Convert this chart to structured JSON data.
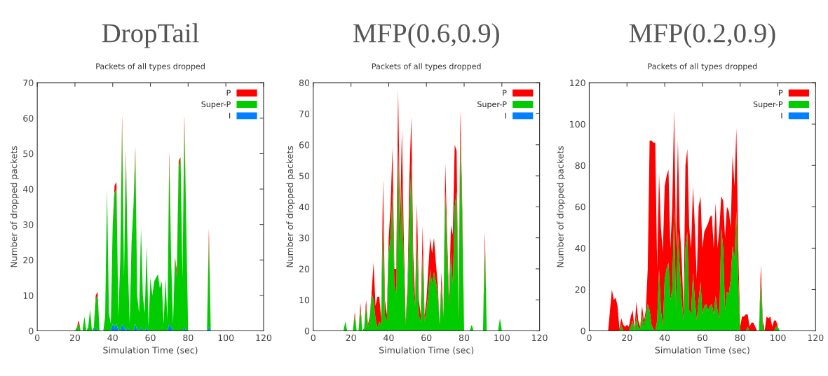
{
  "chart_data": [
    {
      "type": "area",
      "stacked": true,
      "title": "DropTail",
      "subtitle": "Packets of all types dropped",
      "xlabel": "Simulation Time (sec)",
      "ylabel": "Number of dropped packets",
      "xlim": [
        0,
        120
      ],
      "xticks": [
        0,
        20,
        40,
        60,
        80,
        100,
        120
      ],
      "ylim": [
        0,
        70
      ],
      "yticks": [
        0,
        10,
        20,
        30,
        40,
        50,
        60,
        70
      ],
      "legend": "top right",
      "x": [
        0,
        19,
        20,
        21,
        22,
        23,
        24,
        25,
        26,
        27,
        28,
        29,
        30,
        31,
        32,
        33,
        35,
        36,
        37,
        38,
        39,
        40,
        41,
        42,
        43,
        44,
        45,
        46,
        47,
        48,
        49,
        50,
        51,
        52,
        53,
        54,
        55,
        56,
        57,
        58,
        59,
        60,
        61,
        62,
        63,
        64,
        65,
        66,
        67,
        68,
        69,
        70,
        71,
        72,
        73,
        74,
        75,
        76,
        77,
        78,
        79,
        80,
        90,
        91,
        92,
        120
      ],
      "series": [
        {
          "name": "I",
          "color": "#0080ff",
          "values": [
            0,
            0,
            0,
            0,
            0,
            0,
            0,
            0,
            0,
            0,
            0,
            0,
            0,
            1,
            0,
            0,
            0,
            0,
            0,
            0,
            0,
            2,
            1,
            2,
            0,
            0,
            2,
            1,
            0,
            1,
            0,
            0,
            0,
            2,
            0,
            0,
            1,
            0,
            0,
            1,
            0,
            0,
            0,
            0,
            0,
            0,
            0,
            0,
            0,
            0,
            0,
            2,
            1,
            0,
            0,
            0,
            0,
            0,
            0,
            1,
            0,
            0,
            0,
            1,
            0,
            0
          ]
        },
        {
          "name": "Super-P",
          "color": "#00cc00",
          "values": [
            0,
            0,
            0,
            1,
            2,
            0,
            0,
            4,
            0,
            1,
            6,
            0,
            1,
            8,
            10,
            0,
            0,
            4,
            40,
            5,
            2,
            28,
            38,
            38,
            4,
            20,
            56,
            14,
            49,
            19,
            2,
            25,
            35,
            48,
            10,
            5,
            28,
            10,
            5,
            23,
            1,
            15,
            10,
            14,
            15,
            16,
            12,
            14,
            2,
            15,
            3,
            46,
            19,
            2,
            21,
            15,
            46,
            49,
            15,
            57,
            30,
            0,
            0,
            25,
            0,
            0
          ]
        },
        {
          "name": "P",
          "color": "#ff0000",
          "values": [
            0,
            0,
            0,
            0,
            1,
            0,
            0,
            0,
            0,
            0,
            0,
            0,
            0,
            1,
            1,
            0,
            0,
            0,
            0,
            0,
            0,
            0,
            2,
            2,
            0,
            0,
            3,
            0,
            2,
            0,
            0,
            0,
            0,
            2,
            0,
            0,
            0,
            0,
            0,
            0,
            0,
            0,
            0,
            0,
            0,
            0,
            0,
            0,
            0,
            0,
            0,
            3,
            0,
            0,
            0,
            2,
            2,
            0,
            0,
            3,
            0,
            0,
            0,
            3,
            0,
            0
          ]
        }
      ]
    },
    {
      "type": "area",
      "stacked": true,
      "title": "MFP(0.6,0.9)",
      "subtitle": "Packets of all types dropped",
      "xlabel": "Simulation Time (sec)",
      "ylabel": "Number of dropped packets",
      "xlim": [
        0,
        120
      ],
      "xticks": [
        0,
        20,
        40,
        60,
        80,
        100,
        120
      ],
      "ylim": [
        0,
        80
      ],
      "yticks": [
        0,
        10,
        20,
        30,
        40,
        50,
        60,
        70,
        80
      ],
      "legend": "top right",
      "x": [
        0,
        16,
        17,
        18,
        21,
        22,
        23,
        24,
        25,
        26,
        27,
        28,
        29,
        30,
        31,
        32,
        33,
        34,
        35,
        36,
        37,
        38,
        39,
        40,
        41,
        42,
        43,
        44,
        45,
        46,
        47,
        48,
        49,
        50,
        51,
        52,
        53,
        54,
        55,
        56,
        57,
        58,
        59,
        60,
        61,
        62,
        63,
        64,
        65,
        66,
        67,
        68,
        69,
        70,
        71,
        72,
        73,
        74,
        75,
        76,
        77,
        78,
        79,
        80,
        83,
        84,
        85,
        90,
        91,
        92,
        98,
        99,
        100,
        120
      ],
      "series": [
        {
          "name": "I",
          "color": "#0080ff",
          "values": [
            null,
            null,
            null,
            null,
            null,
            null,
            null,
            null,
            null,
            null,
            null,
            null,
            null,
            null,
            null,
            null,
            null,
            null,
            null,
            null,
            null,
            null,
            null,
            null,
            null,
            null,
            null,
            null,
            null,
            null,
            null,
            null,
            null,
            null,
            null,
            null,
            null,
            null,
            null,
            null,
            null,
            null,
            null,
            null,
            null,
            null,
            null,
            null,
            null,
            null,
            null,
            null,
            null,
            null,
            null,
            null,
            null,
            null,
            null,
            null,
            null,
            null,
            null,
            null,
            null,
            null,
            null,
            null,
            null,
            null,
            null,
            null,
            null,
            null
          ]
        },
        {
          "name": "Super-P",
          "color": "#00cc00",
          "values": [
            0,
            0,
            3,
            0,
            0,
            5,
            0,
            0,
            7,
            0,
            1,
            8,
            1,
            4,
            12,
            10,
            4,
            1,
            3,
            2,
            35,
            5,
            3,
            25,
            30,
            45,
            15,
            12,
            60,
            25,
            48,
            20,
            2,
            12,
            35,
            55,
            15,
            8,
            30,
            5,
            3,
            25,
            3,
            7,
            12,
            20,
            15,
            19,
            16,
            12,
            2,
            15,
            4,
            45,
            25,
            8,
            25,
            15,
            40,
            45,
            3,
            63,
            35,
            0,
            0,
            2,
            0,
            0,
            28,
            0,
            0,
            4,
            0,
            0
          ]
        },
        {
          "name": "P",
          "color": "#ff0000",
          "values": [
            0,
            0,
            0,
            0,
            0,
            1,
            0,
            0,
            2,
            0,
            0,
            2,
            1,
            1,
            1,
            12,
            4,
            10,
            8,
            2,
            14,
            5,
            2,
            5,
            10,
            14,
            5,
            8,
            18,
            10,
            17,
            10,
            1,
            3,
            15,
            14,
            10,
            2,
            11,
            5,
            2,
            9,
            2,
            3,
            8,
            10,
            10,
            11,
            6,
            3,
            0,
            4,
            1,
            9,
            5,
            2,
            9,
            16,
            20,
            13,
            2,
            8,
            5,
            0,
            0,
            0,
            0,
            0,
            4,
            0,
            0,
            0,
            0,
            0
          ]
        }
      ]
    },
    {
      "type": "area",
      "stacked": true,
      "title": "MFP(0.2,0.9)",
      "subtitle": "Packets of all types dropped",
      "xlabel": "Simulation Time (sec)",
      "ylabel": "Number of dropped packets",
      "xlim": [
        0,
        120
      ],
      "xticks": [
        0,
        20,
        40,
        60,
        80,
        100,
        120
      ],
      "ylim": [
        0,
        120
      ],
      "yticks": [
        0,
        20,
        40,
        60,
        80,
        100,
        120
      ],
      "legend": "top right",
      "x": [
        0,
        10,
        11,
        12,
        13,
        14,
        15,
        16,
        17,
        18,
        19,
        20,
        21,
        22,
        23,
        24,
        25,
        26,
        27,
        28,
        29,
        30,
        31,
        32,
        33,
        34,
        35,
        36,
        37,
        38,
        39,
        40,
        41,
        42,
        43,
        44,
        45,
        46,
        47,
        48,
        49,
        50,
        51,
        52,
        53,
        54,
        55,
        56,
        57,
        58,
        59,
        60,
        61,
        62,
        63,
        64,
        65,
        66,
        67,
        68,
        69,
        70,
        71,
        72,
        73,
        74,
        75,
        76,
        77,
        78,
        79,
        80,
        81,
        82,
        83,
        84,
        85,
        86,
        87,
        88,
        89,
        90,
        91,
        92,
        93,
        94,
        95,
        96,
        97,
        98,
        99,
        100,
        101,
        120
      ],
      "series": [
        {
          "name": "I",
          "color": "#0080ff",
          "values": [
            null,
            null,
            null,
            null,
            null,
            null,
            null,
            null,
            null,
            null,
            null,
            null,
            null,
            null,
            null,
            null,
            null,
            null,
            null,
            null,
            null,
            null,
            null,
            null,
            null,
            null,
            null,
            null,
            null,
            null,
            null,
            null,
            null,
            null,
            null,
            null,
            null,
            null,
            null,
            null,
            null,
            null,
            null,
            null,
            null,
            null,
            null,
            null,
            null,
            null,
            null,
            null,
            null,
            null,
            null,
            null,
            null,
            null,
            null,
            null,
            null,
            null,
            null,
            null,
            null,
            null,
            null,
            null,
            null,
            null,
            null,
            null,
            null,
            null,
            null,
            null,
            null,
            null,
            null,
            null,
            null,
            null,
            null,
            null,
            null,
            null,
            null,
            null,
            null,
            null,
            null,
            null,
            null,
            null
          ]
        },
        {
          "name": "Super-P",
          "color": "#00cc00",
          "values": [
            0,
            0,
            0,
            0,
            0,
            0,
            0,
            0,
            3,
            0,
            0,
            0,
            0,
            2,
            5,
            0,
            7,
            2,
            1,
            8,
            2,
            8,
            13,
            10,
            3,
            1,
            0,
            5,
            30,
            10,
            2,
            25,
            30,
            33,
            15,
            20,
            60,
            10,
            48,
            30,
            15,
            5,
            40,
            48,
            10,
            8,
            28,
            15,
            5,
            15,
            24,
            8,
            12,
            13,
            10,
            12,
            13,
            8,
            17,
            10,
            6,
            50,
            40,
            10,
            19,
            18,
            25,
            41,
            35,
            58,
            25,
            0,
            0,
            0,
            0,
            2,
            0,
            0,
            0,
            0,
            0,
            0,
            25,
            2,
            0,
            0,
            0,
            0,
            0,
            0,
            2,
            2,
            0,
            0
          ]
        },
        {
          "name": "P",
          "color": "#ff0000",
          "values": [
            0,
            0,
            10,
            20,
            15,
            16,
            12,
            1,
            3,
            3,
            2,
            3,
            2,
            5,
            5,
            1,
            7,
            3,
            1,
            4,
            3,
            2,
            17,
            82,
            89,
            90,
            91,
            25,
            46,
            40,
            36,
            45,
            45,
            45,
            25,
            40,
            47,
            30,
            44,
            20,
            20,
            5,
            40,
            40,
            40,
            32,
            42,
            35,
            20,
            45,
            41,
            32,
            36,
            37,
            42,
            43,
            43,
            32,
            45,
            30,
            44,
            15,
            23,
            35,
            41,
            40,
            25,
            44,
            35,
            40,
            15,
            2,
            7,
            7,
            8,
            6,
            2,
            4,
            4,
            2,
            0,
            0,
            7,
            3,
            0,
            7,
            6,
            7,
            2,
            5,
            3,
            0,
            0,
            0
          ]
        }
      ]
    }
  ]
}
